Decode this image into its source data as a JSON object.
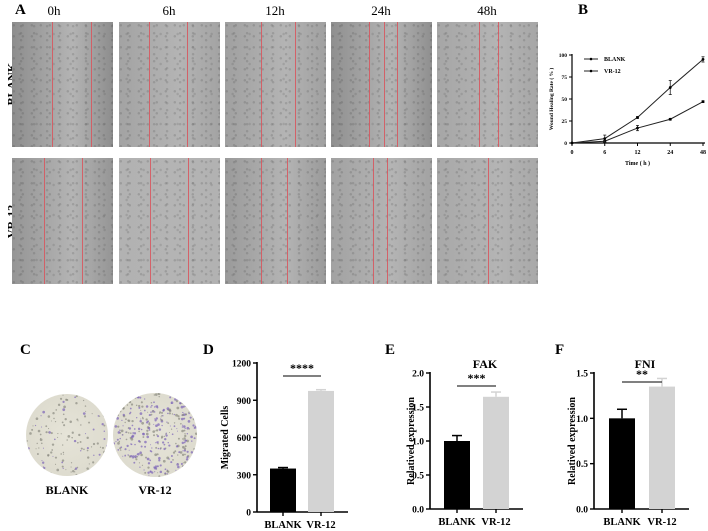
{
  "figure": {
    "panel_labels": {
      "A": "A",
      "B": "B",
      "C": "C",
      "D": "D",
      "E": "E",
      "F": "F"
    },
    "panel_a": {
      "time_labels": [
        "0h",
        "6h",
        "12h",
        "24h",
        "48h"
      ],
      "row_labels": [
        "BLANK",
        "VR-12"
      ],
      "images": [
        {
          "row": "BLANK",
          "time": "0h",
          "tone": "#8d8d8d",
          "lines": [
            40,
            78
          ]
        },
        {
          "row": "BLANK",
          "time": "6h",
          "tone": "#a3a3a3",
          "lines": [
            30,
            67
          ]
        },
        {
          "row": "BLANK",
          "time": "12h",
          "tone": "#a0a0a0",
          "lines": [
            36,
            69
          ]
        },
        {
          "row": "BLANK",
          "time": "24h",
          "tone": "#8f8f8f",
          "lines": [
            38,
            52,
            65
          ]
        },
        {
          "row": "BLANK",
          "time": "48h",
          "tone": "#a6a6a6",
          "lines": [
            42,
            60
          ]
        },
        {
          "row": "VR-12",
          "time": "0h",
          "tone": "#959595",
          "lines": [
            32,
            69
          ]
        },
        {
          "row": "VR-12",
          "time": "6h",
          "tone": "#b2b2b2",
          "lines": [
            31,
            68
          ]
        },
        {
          "row": "VR-12",
          "time": "12h",
          "tone": "#9a9a9a",
          "lines": [
            36,
            61
          ]
        },
        {
          "row": "VR-12",
          "time": "24h",
          "tone": "#a2a2a2",
          "lines": [
            42,
            55
          ]
        },
        {
          "row": "VR-12",
          "time": "48h",
          "tone": "#a8a8a8",
          "lines": [
            50
          ]
        }
      ]
    },
    "panel_c": {
      "labels": [
        "BLANK",
        "VR-12"
      ],
      "dish_color": "#e6e4d8",
      "stain_color": "#7a62b8"
    }
  },
  "chart_data": [
    {
      "id": "B",
      "type": "line",
      "title": "",
      "xlabel": "Time ( h )",
      "ylabel": "Wound Healing Rate ( % )",
      "x": [
        0,
        6,
        12,
        24,
        48
      ],
      "x_tick_labels": [
        "0",
        "6",
        "12",
        "24",
        "48"
      ],
      "y_ticks": [
        0,
        25,
        50,
        75,
        100
      ],
      "ylim": [
        0,
        100
      ],
      "legend": [
        "BLANK",
        "VR-12"
      ],
      "legend_position": "upper-left",
      "series": [
        {
          "name": "BLANK",
          "values": [
            0,
            2,
            17,
            27,
            47
          ],
          "errors": [
            0,
            1,
            3,
            1,
            1
          ]
        },
        {
          "name": "VR-12",
          "values": [
            0,
            5,
            29,
            63,
            95
          ],
          "errors": [
            0,
            4,
            1,
            8,
            3
          ]
        }
      ],
      "grid": false
    },
    {
      "id": "D",
      "type": "bar",
      "title": "",
      "xlabel": "",
      "ylabel": "Migrated Cells",
      "categories": [
        "BLANK",
        "VR-12"
      ],
      "values": [
        350,
        975
      ],
      "errors": [
        8,
        10
      ],
      "colors": [
        "#000000",
        "#d3d3d3"
      ],
      "y_ticks": [
        0,
        300,
        600,
        900,
        1200
      ],
      "ylim": [
        0,
        1200
      ],
      "significance": "****"
    },
    {
      "id": "E",
      "type": "bar",
      "title": "FAK",
      "xlabel": "",
      "ylabel": "Relatived expression",
      "categories": [
        "BLANK",
        "VR-12"
      ],
      "values": [
        1.0,
        1.65
      ],
      "errors": [
        0.08,
        0.07
      ],
      "colors": [
        "#000000",
        "#d3d3d3"
      ],
      "y_ticks": [
        "0.0",
        "0.5",
        "1.0",
        "1.5",
        "2.0"
      ],
      "ylim": [
        0,
        2.0
      ],
      "significance": "***"
    },
    {
      "id": "F",
      "type": "bar",
      "title": "FNI",
      "xlabel": "",
      "ylabel": "Relatived expression",
      "categories": [
        "BLANK",
        "VR-12"
      ],
      "values": [
        1.0,
        1.35
      ],
      "errors": [
        0.1,
        0.09
      ],
      "colors": [
        "#000000",
        "#d3d3d3"
      ],
      "y_ticks": [
        "0.0",
        "0.5",
        "1.0",
        "1.5"
      ],
      "ylim": [
        0,
        1.5
      ],
      "significance": "**"
    }
  ]
}
